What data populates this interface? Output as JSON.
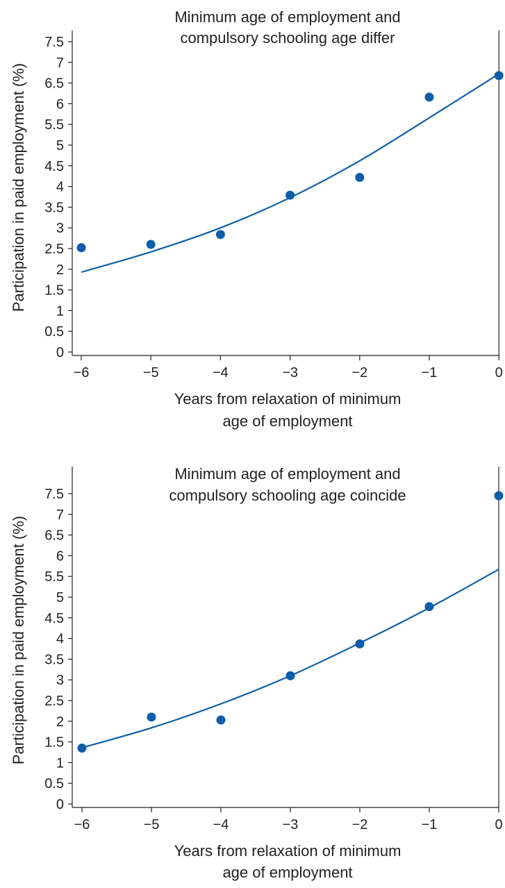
{
  "chart_data": [
    {
      "type": "scatter",
      "title_lines": [
        "Minimum age of employment and",
        "compulsory schooling age differ"
      ],
      "xlabel_lines": [
        "Years from relaxation of minimum",
        "age of employment"
      ],
      "ylabel": "Participation in paid employment (%)",
      "xlim": [
        -6,
        0
      ],
      "ylim": [
        0,
        7.5
      ],
      "x_ticks": [
        "−6",
        "−5",
        "−4",
        "−3",
        "−2",
        "−1",
        "0"
      ],
      "y_ticks": [
        "0",
        "0.5",
        "1",
        "1.5",
        "2",
        "2.5",
        "3",
        "3.5",
        "4",
        "4.5",
        "5",
        "5.5",
        "6",
        "6.5",
        "7",
        "7.5"
      ],
      "series": [
        {
          "type": "scatter",
          "x": [
            -6,
            -5,
            -4,
            -3,
            -2,
            -1,
            0
          ],
          "y": [
            2.52,
            2.6,
            2.84,
            3.79,
            4.22,
            6.16,
            6.68
          ]
        },
        {
          "type": "line",
          "x": [
            -6,
            -5,
            -4,
            -3,
            -2,
            -1,
            0
          ],
          "y": [
            1.93,
            2.42,
            3.0,
            3.73,
            4.62,
            5.66,
            6.72
          ]
        }
      ],
      "colors": {
        "series": "#0d5ea8",
        "axis": "#231f20"
      },
      "grid": false
    },
    {
      "type": "scatter",
      "title_lines": [
        "Minimum age of employment and",
        "compulsory schooling age coincide"
      ],
      "xlabel_lines": [
        "Years from relaxation of minimum",
        "age of employment"
      ],
      "ylabel": "Participation in paid employment (%)",
      "xlim": [
        -6,
        0
      ],
      "ylim": [
        0,
        7.5
      ],
      "x_ticks": [
        "−6",
        "−5",
        "−4",
        "−3",
        "−2",
        "−1",
        "0"
      ],
      "y_ticks": [
        "0",
        "0.5",
        "1",
        "1.5",
        "2",
        "2.5",
        "3",
        "3.5",
        "4",
        "4.5",
        "5",
        "5.5",
        "6",
        "6.5",
        "7",
        "7.5"
      ],
      "series": [
        {
          "type": "scatter",
          "x": [
            -6,
            -5,
            -4,
            -3,
            -2,
            -1,
            0
          ],
          "y": [
            1.35,
            2.1,
            2.03,
            3.1,
            3.87,
            4.77,
            7.45
          ]
        },
        {
          "type": "line",
          "x": [
            -6,
            -5,
            -4,
            -3,
            -2,
            -1,
            0
          ],
          "y": [
            1.36,
            1.84,
            2.42,
            3.1,
            3.89,
            4.74,
            5.67
          ]
        }
      ],
      "colors": {
        "series": "#0d5ea8",
        "axis": "#231f20"
      },
      "grid": false
    }
  ]
}
